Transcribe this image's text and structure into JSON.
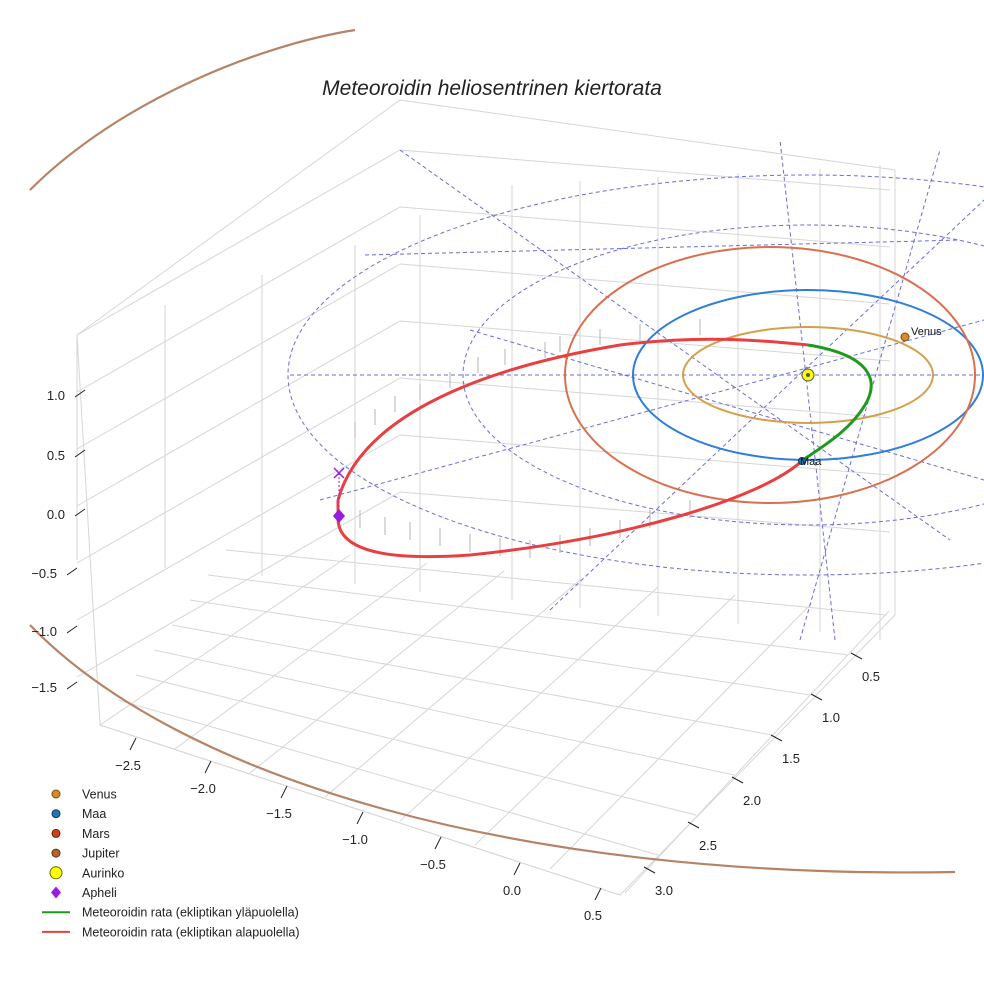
{
  "chart_data": {
    "type": "3d-line",
    "title": "Meteoroidin heliosentrinen kiertorata",
    "xlabel": "",
    "ylabel": "",
    "zlabel": "",
    "x_ticks": [
      "−2.5",
      "−2.0",
      "−1.5",
      "−1.0",
      "−0.5",
      "0.0",
      "0.5"
    ],
    "y_ticks": [
      "0.5",
      "1.0",
      "1.5",
      "2.0",
      "2.5",
      "3.0"
    ],
    "z_ticks": [
      "1.0",
      "0.5",
      "0.0",
      "−0.5",
      "−1.0",
      "−1.5"
    ],
    "xlim": [
      -2.8,
      0.6
    ],
    "ylim": [
      0.2,
      3.3
    ],
    "zlim": [
      -1.9,
      1.4
    ],
    "planets": [
      {
        "name": "Venus",
        "a_au": 0.72,
        "color": "#d99a3e",
        "orbit_color": "#d4a04a",
        "label": "Venus"
      },
      {
        "name": "Maa",
        "a_au": 1.0,
        "color": "#1f77b4",
        "orbit_color": "#2f7fd6",
        "label": "Maa"
      },
      {
        "name": "Mars",
        "a_au": 1.52,
        "color": "#d9542b",
        "orbit_color": "#d9704e",
        "label": ""
      },
      {
        "name": "Jupiter",
        "a_au": 5.2,
        "color": "#b5703f",
        "orbit_color": "#b48466",
        "label": ""
      }
    ],
    "sun": {
      "name": "Aurinko",
      "color": "#ffff00",
      "x": 0,
      "y": 0,
      "z": 0
    },
    "aphelion": {
      "name": "Apheli",
      "color": "#9a1ce0"
    },
    "meteoroid_orbit": {
      "perihelion_au": 0.35,
      "aphelion_au": 3.1,
      "segments": [
        {
          "name": "Meteoroidin rata (ekliptikan yläpuolella)",
          "color": "#1e9a1e"
        },
        {
          "name": "Meteoroidin rata (ekliptikan alapuolella)",
          "color": "#e84040"
        }
      ]
    }
  },
  "legend": [
    {
      "label": "Venus",
      "marker": "circle",
      "color": "#d98a22",
      "edge": "#7a4a10"
    },
    {
      "label": "Maa",
      "marker": "circle",
      "color": "#1f77b4",
      "edge": "#0e3a5c"
    },
    {
      "label": "Mars",
      "marker": "circle",
      "color": "#c8431b",
      "edge": "#6a2208"
    },
    {
      "label": "Jupiter",
      "marker": "circle",
      "color": "#b5652f",
      "edge": "#5c3010"
    },
    {
      "label": "Aurinko",
      "marker": "circle-big",
      "color": "#ffff00",
      "edge": "#666600"
    },
    {
      "label": "Apheli",
      "marker": "diamond",
      "color": "#9a1ce0",
      "edge": "#9a1ce0"
    },
    {
      "label": "Meteoroidin rata (ekliptikan yläpuolella)",
      "marker": "line",
      "color": "#1e9a1e",
      "edge": ""
    },
    {
      "label": "Meteoroidin rata (ekliptikan alapuolella)",
      "marker": "line",
      "color": "#e84040",
      "edge": ""
    }
  ]
}
